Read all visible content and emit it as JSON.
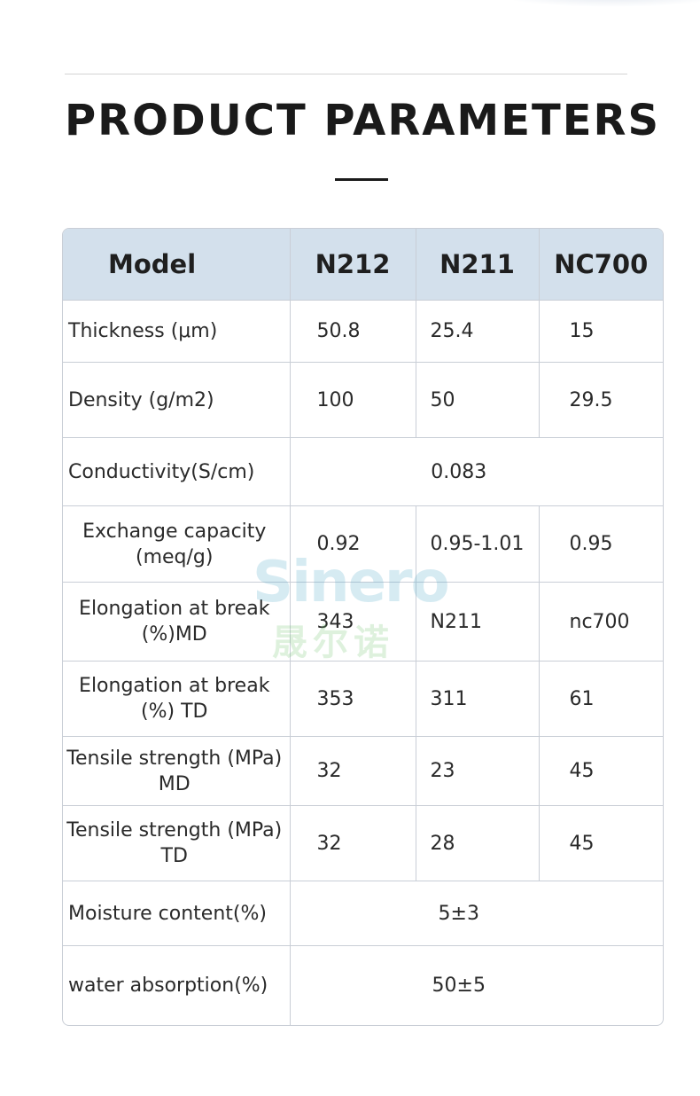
{
  "header": {
    "title": "PRODUCT PARAMETERS"
  },
  "table": {
    "headers": [
      "Model",
      "N212",
      "N211",
      "NC700"
    ],
    "rows": [
      {
        "label": "Thickness (μm)",
        "values": [
          "50.8",
          "25.4",
          "15"
        ]
      },
      {
        "label": "Density (g/m2)",
        "values": [
          "100",
          "50",
          "29.5"
        ]
      },
      {
        "label": "Conductivity(S/cm)",
        "merged": "0.083"
      },
      {
        "label": "Exchange capacity (meq/g)",
        "values": [
          "0.92",
          "0.95-1.01",
          "0.95"
        ]
      },
      {
        "label": "Elongation at break (%)MD",
        "values": [
          "343",
          "N211",
          "nc700"
        ]
      },
      {
        "label": "Elongation at break (%) TD",
        "values": [
          "353",
          "311",
          "61"
        ]
      },
      {
        "label": "Tensile strength (MPa) MD",
        "values": [
          "32",
          "23",
          "45"
        ]
      },
      {
        "label": "Tensile strength (MPa) TD",
        "values": [
          "32",
          "28",
          "45"
        ]
      },
      {
        "label": "Moisture content(%)",
        "merged": "5±3"
      },
      {
        "label": "water absorption(%)",
        "merged": "50±5"
      }
    ]
  },
  "watermark": {
    "brand": "Sinero",
    "sub": "晟尔诺"
  }
}
